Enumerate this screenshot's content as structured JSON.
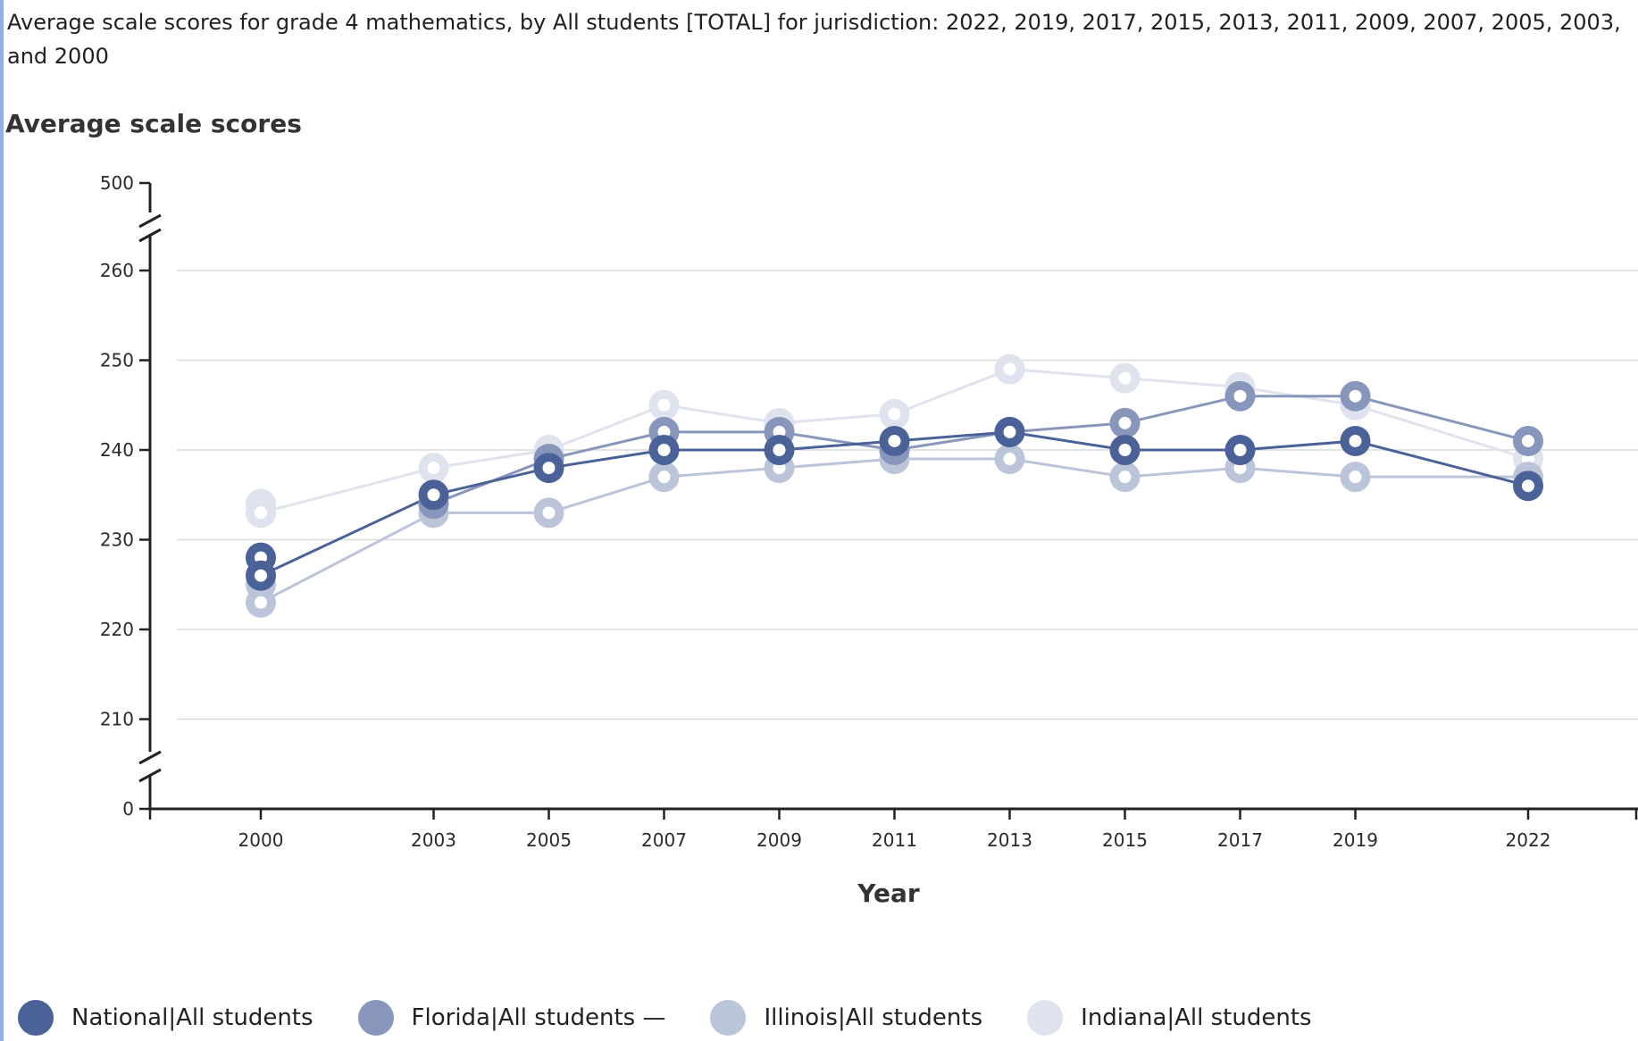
{
  "chart_data": {
    "type": "line",
    "title": "Average scale scores for grade 4 mathematics, by All students [TOTAL] for jurisdiction: 2022, 2019, 2017, 2015, 2013, 2011, 2009, 2007, 2005, 2003, and 2000",
    "ylabel": "Average scale scores",
    "xlabel": "Year",
    "x": [
      2000,
      2003,
      2005,
      2007,
      2009,
      2011,
      2013,
      2015,
      2017,
      2019,
      2022
    ],
    "y_ticks": [
      0,
      210,
      220,
      230,
      240,
      250,
      260,
      500
    ],
    "y_axis_break": "0 to 500 with breaks; visible range 205-265",
    "grid": true,
    "legend_position": "bottom",
    "series": [
      {
        "name": "National",
        "legend_label": "National|All students",
        "color": "#4a6298",
        "values": [
          226,
          235,
          238,
          240,
          240,
          241,
          242,
          240,
          240,
          241,
          236
        ],
        "extra_markers": [
          {
            "x": 2000,
            "y": 228
          }
        ]
      },
      {
        "name": "Florida",
        "legend_label": "Florida|All students —",
        "color": "#8796ba",
        "values": [
          null,
          234,
          239,
          242,
          242,
          240,
          242,
          243,
          246,
          246,
          241
        ]
      },
      {
        "name": "Illinois",
        "legend_label": "Illinois|All students",
        "color": "#bcc4d9",
        "values": [
          223,
          233,
          233,
          237,
          238,
          239,
          239,
          237,
          238,
          237,
          237
        ],
        "extra_markers": [
          {
            "x": 2000,
            "y": 225
          }
        ]
      },
      {
        "name": "Indiana",
        "legend_label": "Indiana|All students",
        "color": "#dfe3ee",
        "values": [
          233,
          238,
          240,
          245,
          243,
          244,
          249,
          248,
          247,
          245,
          239
        ],
        "extra_markers": [
          {
            "x": 2000,
            "y": 234
          }
        ]
      }
    ]
  }
}
